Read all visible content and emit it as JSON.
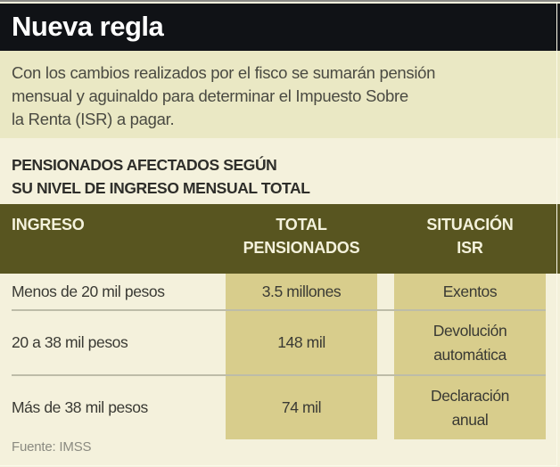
{
  "title": "Nueva regla",
  "intro": "Con los cambios realizados por el fisco se sumarán pensión mensual y aguinaldo para determinar el Impuesto Sobre la Renta (ISR) a pagar.",
  "intro_lines": [
    "Con los cambios realizados por el fisco se sumarán pensión",
    "mensual y aguinaldo para determinar el Impuesto Sobre",
    "la Renta (ISR) a pagar."
  ],
  "subtitle_lines": [
    "PENSIONADOS AFECTADOS SEGÚN",
    "SU NIVEL DE INGRESO MENSUAL TOTAL"
  ],
  "table": {
    "headers": {
      "ingreso": "INGRESO",
      "total": [
        "TOTAL",
        "PENSIONADOS"
      ],
      "situacion": [
        "SITUACIÓN",
        "ISR"
      ]
    },
    "rows": [
      {
        "ingreso": "Menos de 20 mil pesos",
        "total": "3.5 millones",
        "situacion": [
          "Exentos"
        ]
      },
      {
        "ingreso": "20 a 38 mil pesos",
        "total": "148 mil",
        "situacion": [
          "Devolución",
          "automática"
        ]
      },
      {
        "ingreso": "Más de 38 mil pesos",
        "total": "74 mil",
        "situacion": [
          "Declaración",
          "anual"
        ]
      }
    ]
  },
  "source": "Fuente: IMSS",
  "colors": {
    "title_bg": "#101216",
    "intro_bg": "#eae8c4",
    "page_bg": "#f4f1dc",
    "header_bg": "#585520",
    "band_bg": "#d8cd8c",
    "separator": "#bdbca8"
  }
}
